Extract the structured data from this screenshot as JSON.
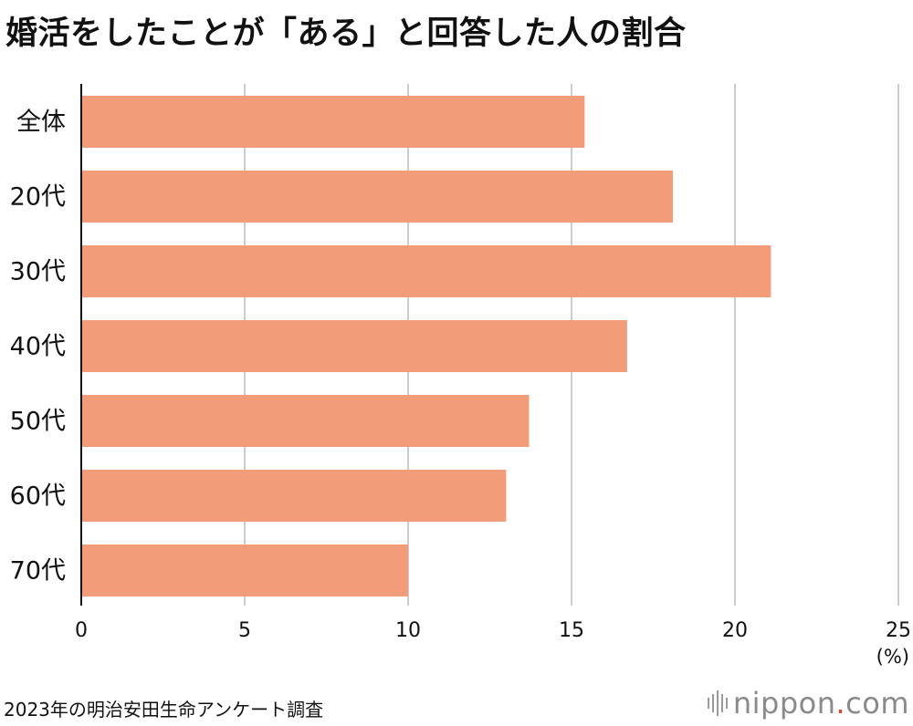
{
  "title": "婚活をしたことが「ある」と回答した人の割合",
  "source": "2023年の明治安田生命アンケート調査",
  "logo": {
    "name": "nippon",
    "dot": ".",
    "tld": "com"
  },
  "colors": {
    "bar": "#f29c7a",
    "grid": "#cccccc",
    "axis": "#111111"
  },
  "chart_data": {
    "type": "bar",
    "orientation": "horizontal",
    "categories": [
      "全体",
      "20代",
      "30代",
      "40代",
      "50代",
      "60代",
      "70代"
    ],
    "values": [
      15.4,
      18.1,
      21.1,
      16.7,
      13.7,
      13.0,
      10.0
    ],
    "xlim": [
      0,
      25
    ],
    "xticks": [
      "0",
      "5",
      "10",
      "15",
      "20",
      "25"
    ],
    "unit": "(%)",
    "grid": true
  }
}
